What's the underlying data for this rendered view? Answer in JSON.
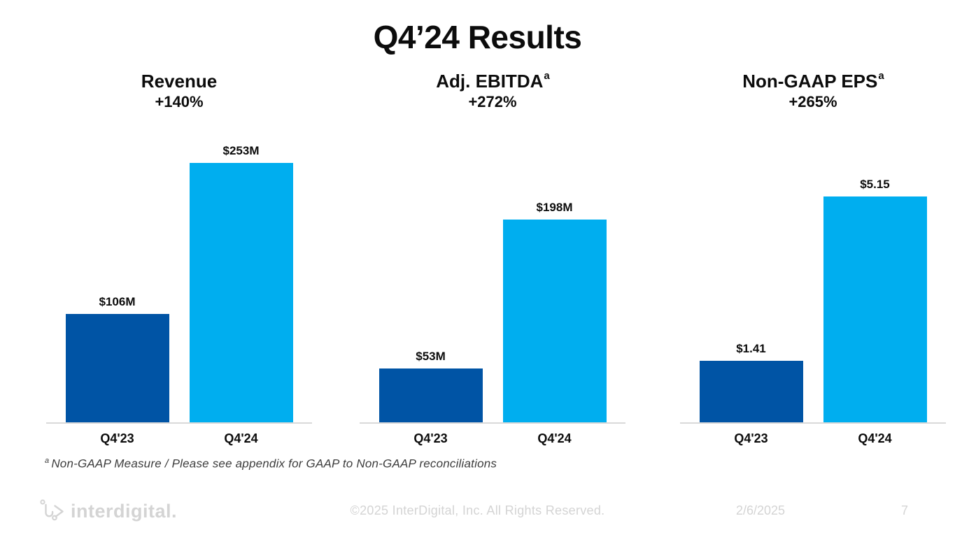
{
  "slide": {
    "title": "Q4’24 Results",
    "footnote": {
      "superscript": "a",
      "text": "Non-GAAP Measure / Please see appendix for GAAP to Non-GAAP reconciliations"
    },
    "footer": {
      "logo_text": "interdigital.",
      "copyright": "©2025 InterDigital, Inc. All Rights Reserved.",
      "date": "2/6/2025",
      "page_number": "7"
    }
  },
  "colors": {
    "bar_q423": "#0054A5",
    "bar_q424": "#00AEEF",
    "axis_line": "#D9D9D9",
    "footer_text": "#D4D4D4"
  },
  "chart_data": [
    {
      "type": "bar",
      "title": "Revenue",
      "superscript": "",
      "growth": "+140%",
      "categories": [
        "Q4'23",
        "Q4'24"
      ],
      "values": [
        106,
        253
      ],
      "value_labels": [
        "$106M",
        "$253M"
      ],
      "ylim": [
        0,
        300
      ],
      "grid": false,
      "legend": "none"
    },
    {
      "type": "bar",
      "title": "Adj. EBITDA",
      "superscript": "a",
      "growth": "+272%",
      "categories": [
        "Q4'23",
        "Q4'24"
      ],
      "values": [
        53,
        198
      ],
      "value_labels": [
        "$53M",
        "$198M"
      ],
      "ylim": [
        0,
        300
      ],
      "grid": false,
      "legend": "none"
    },
    {
      "type": "bar",
      "title": "Non-GAAP EPS",
      "superscript": "a",
      "growth": "+265%",
      "categories": [
        "Q4'23",
        "Q4'24"
      ],
      "values": [
        1.41,
        5.15
      ],
      "value_labels": [
        "$1.41",
        "$5.15"
      ],
      "ylim": [
        0,
        7
      ],
      "grid": false,
      "legend": "none"
    }
  ]
}
